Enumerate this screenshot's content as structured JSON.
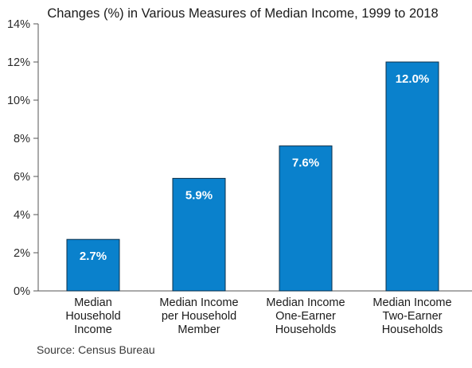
{
  "chart_data": {
    "type": "bar",
    "title": "Changes (%) in Various Measures of Median Income, 1999 to 2018",
    "categories": [
      [
        "Median",
        "Household",
        "Income"
      ],
      [
        "Median Income",
        "per Household",
        "Member"
      ],
      [
        "Median Income",
        "One-Earner",
        "Households"
      ],
      [
        "Median Income",
        "Two-Earner",
        "Households"
      ]
    ],
    "values": [
      2.7,
      5.9,
      7.6,
      12.0
    ],
    "data_labels": [
      "2.7%",
      "5.9%",
      "7.6%",
      "12.0%"
    ],
    "ylim": [
      0,
      14
    ],
    "yticks": [
      0,
      2,
      4,
      6,
      8,
      10,
      12,
      14
    ],
    "ytick_labels": [
      "0%",
      "2%",
      "4%",
      "6%",
      "8%",
      "10%",
      "12%",
      "14%"
    ],
    "xlabel": "",
    "ylabel": "",
    "grid": false,
    "bar_color": "#0A81CC",
    "source": "Source: Census Bureau"
  }
}
